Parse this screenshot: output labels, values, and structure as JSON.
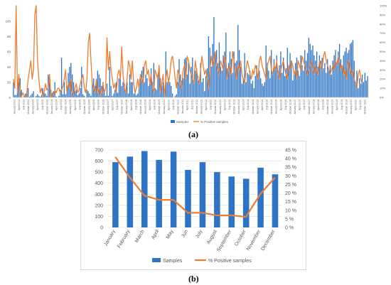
{
  "panels": {
    "a": "(a)",
    "b": "(b)"
  },
  "colors": {
    "samples": "#2e74c6",
    "positive": "#ed7d31",
    "grid": "#d9d9d9",
    "axis_text": "#595959"
  },
  "chart_data": [
    {
      "id": "a",
      "type": "bar",
      "secondary_type": "line",
      "title": "",
      "ylim": [
        0,
        120
      ],
      "yticks": [
        0,
        20,
        40,
        60,
        80,
        100
      ],
      "y2lim": [
        0,
        100
      ],
      "y2ticks": [
        "0%",
        "10%",
        "20%",
        "30%",
        "40%",
        "50%",
        "60%",
        "70%",
        "80%",
        "90%",
        "100%"
      ],
      "grid": false,
      "legend_position": "bottom",
      "x_tick_labels": [
        "January 2002",
        "April 2002",
        "July 2002",
        "October 2002",
        "January 2003",
        "April 2003",
        "July 2003",
        "October 2003",
        "January 2004",
        "April 2004",
        "July 2004",
        "October 2004",
        "January 2005",
        "April 2005",
        "July 2005",
        "October 2005",
        "January 2006",
        "April 2006",
        "July 2006",
        "October 2006",
        "January 2007",
        "April 2007",
        "July 2007",
        "October 2007",
        "January 2008",
        "April 2008",
        "July 2008",
        "October 2008",
        "January 2009",
        "April 2009",
        "July 2009",
        "October 2009",
        "January 2010",
        "April 2010",
        "July 2010",
        "October 2010",
        "January 2011",
        "April 2011",
        "July 2011",
        "October 2011",
        "January 2012",
        "April 2012",
        "July 2012",
        "October 2012",
        "January 2013",
        "April 2013",
        "July 2013",
        "October 2013",
        "January 2014",
        "April 2014",
        "July 2014",
        "October 2014",
        "January 2015",
        "April 2015",
        "July 2015",
        "October 2015",
        "January 2016",
        "April 2016",
        "July 2016",
        "October 2016",
        "January 2017",
        "April 2017",
        "July 2017",
        "October 2017",
        "January 2018",
        "April 2018",
        "July 2018",
        "October 2018",
        "January 2019",
        "April 2019",
        "July 2019",
        "October 2019",
        "January 2020",
        "April 2020",
        "July 2020",
        "October 2020"
      ],
      "series": [
        {
          "name": "Samples",
          "kind": "bar",
          "axis": "left",
          "values": [
            20,
            3,
            3,
            15,
            20,
            25,
            10,
            0,
            2,
            5,
            8,
            12,
            1,
            3,
            5,
            8,
            0,
            2,
            4,
            2,
            1,
            3,
            12,
            6,
            5,
            2,
            30,
            20,
            10,
            6,
            8,
            20,
            1,
            0,
            2,
            10,
            52,
            4,
            20,
            4,
            15,
            32,
            40,
            45,
            30,
            20,
            8,
            10,
            3,
            5,
            12,
            40,
            4,
            2,
            0,
            10,
            8,
            5,
            2,
            20,
            25,
            15,
            20,
            35,
            30,
            25,
            15,
            20,
            10,
            2,
            18,
            2,
            40,
            15,
            2,
            5,
            10,
            20,
            6,
            25,
            25,
            15,
            20,
            18,
            10,
            20,
            5,
            30,
            20,
            20,
            5,
            8,
            3,
            5,
            15,
            25,
            35,
            40,
            20,
            30,
            25,
            15,
            18,
            38,
            20,
            45,
            12,
            10,
            30,
            35,
            25,
            15,
            20,
            10,
            60,
            20,
            25,
            20,
            15,
            5,
            0,
            2,
            4,
            20,
            50,
            30,
            22,
            25,
            50,
            52,
            30,
            45,
            18,
            40,
            52,
            20,
            35,
            38,
            28,
            22,
            45,
            20,
            25,
            8,
            28,
            38,
            80,
            65,
            40,
            70,
            105,
            55,
            62,
            45,
            72,
            40,
            35,
            55,
            60,
            85,
            38,
            45,
            60,
            50,
            32,
            60,
            45,
            48,
            95,
            62,
            40,
            18,
            25,
            58,
            20,
            32,
            30,
            35,
            18,
            22,
            12,
            28,
            42,
            30,
            35,
            25,
            18,
            15,
            20,
            68,
            45,
            35,
            25,
            62,
            30,
            50,
            40,
            55,
            35,
            42,
            60,
            32,
            52,
            28,
            38,
            65,
            40,
            58,
            48,
            22,
            30,
            45,
            52,
            35,
            28,
            55,
            42,
            35,
            62,
            48,
            58,
            78,
            70,
            62,
            68,
            55,
            48,
            60,
            40,
            55,
            48,
            52,
            38,
            45,
            32,
            50,
            35,
            42,
            30,
            48,
            55,
            62,
            45,
            60,
            70,
            50,
            38,
            55,
            60,
            65,
            58,
            62,
            70,
            72,
            75,
            48,
            20,
            35,
            12,
            25,
            18,
            30,
            20,
            32,
            22,
            28
          ]
        },
        {
          "name": "% Positive samples",
          "kind": "line",
          "axis": "right",
          "values": [
            20,
            10,
            100,
            5,
            25,
            8,
            0,
            5,
            2,
            0,
            5,
            20,
            30,
            40,
            20,
            30,
            90,
            100,
            40,
            20,
            5,
            10,
            0,
            5,
            15,
            8,
            10,
            25,
            0,
            5,
            2,
            8,
            5,
            10,
            10,
            5,
            8,
            12,
            20,
            30,
            5,
            15,
            10,
            20,
            5,
            2,
            10,
            15,
            5,
            8,
            15,
            20,
            25,
            10,
            5,
            20,
            60,
            70,
            40,
            15,
            10,
            5,
            20,
            5,
            10,
            2,
            5,
            15,
            5,
            10,
            65,
            30,
            50,
            30,
            20,
            10,
            15,
            5,
            25,
            30,
            20,
            55,
            25,
            10,
            5,
            20,
            40,
            35,
            20,
            40,
            15,
            5,
            10,
            20,
            10,
            25,
            20,
            15,
            35,
            40,
            25,
            30,
            15,
            25,
            10,
            5,
            30,
            25,
            20,
            35,
            5,
            15,
            25,
            0,
            20,
            30,
            15,
            25,
            40,
            45,
            35,
            20,
            10,
            30,
            25,
            15,
            10,
            30,
            35,
            20,
            45,
            40,
            30,
            25,
            20,
            15,
            40,
            30,
            20,
            15,
            30,
            45,
            35,
            25,
            30,
            20,
            10,
            30,
            45,
            35,
            40,
            50,
            35,
            30,
            25,
            40,
            35,
            30,
            45,
            40,
            20,
            30,
            35,
            25,
            50,
            40,
            30,
            20,
            35,
            30,
            40,
            25,
            20,
            15,
            30,
            40,
            35,
            25,
            20,
            30,
            25,
            35,
            30,
            20,
            40,
            45,
            35,
            30,
            25,
            20,
            35,
            40,
            45,
            30,
            25,
            35,
            30,
            40,
            25,
            20,
            30,
            35,
            40,
            30,
            25,
            20,
            35,
            30,
            40,
            35,
            25,
            30,
            20,
            40,
            35,
            30,
            45,
            40,
            35,
            30,
            25,
            30,
            35,
            40,
            30,
            25,
            35,
            30,
            25,
            40,
            35,
            30,
            45,
            50,
            40,
            35,
            30,
            25,
            30,
            35,
            30,
            40,
            35,
            45,
            40,
            30,
            35,
            25,
            30,
            20,
            35,
            40,
            30,
            25,
            30,
            20,
            15,
            10,
            25,
            30,
            20,
            15
          ]
        }
      ]
    },
    {
      "id": "b",
      "type": "bar",
      "secondary_type": "line",
      "title": "",
      "categories": [
        "January",
        "February",
        "March",
        "April",
        "May",
        "Jun",
        "July",
        "August",
        "September",
        "October",
        "November",
        "December"
      ],
      "ylim": [
        0,
        700
      ],
      "yticks": [
        0,
        100,
        200,
        300,
        400,
        500,
        600,
        700
      ],
      "y2lim": [
        0,
        45
      ],
      "y2ticks": [
        "0  %",
        "5  %",
        "10  %",
        "15  %",
        "20  %",
        "25  %",
        "30  %",
        "35  %",
        "40  %",
        "45  %"
      ],
      "grid": true,
      "legend_position": "bottom",
      "series": [
        {
          "name": "Samples",
          "kind": "bar",
          "axis": "left",
          "values": [
            590,
            640,
            690,
            610,
            685,
            520,
            590,
            500,
            460,
            440,
            540,
            480
          ]
        },
        {
          "name": "% Positive samples",
          "kind": "line",
          "axis": "right",
          "values": [
            41,
            29,
            18.5,
            16,
            16,
            8.5,
            8.5,
            7,
            7,
            6.2,
            19.5,
            29
          ]
        }
      ]
    }
  ]
}
